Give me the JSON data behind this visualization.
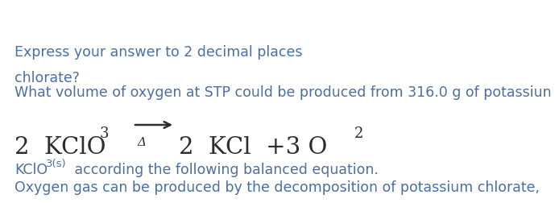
{
  "bg_color": "#ffffff",
  "text_color": "#3d3d3d",
  "text_color_body": "#4a6fa5",
  "line1": "Oxygen gas can be produced by the decomposition of potassium chlorate,",
  "line2_prefix": "KClO",
  "line2_sub": "3(s)",
  "line2_suffix": " according the following balanced equation.",
  "question_line1": "What volume of oxygen at STP could be produced from 316.0 g of potassiun",
  "question_line2": "chlorate?",
  "instruction": "Express your answer to 2 decimal places",
  "font_size_body": 12.5,
  "font_size_equation": 21,
  "font_size_sub_eq": 13,
  "font_size_sub_body": 9.5,
  "font_size_delta": 11,
  "eq_text_color": "#2d2d2d"
}
